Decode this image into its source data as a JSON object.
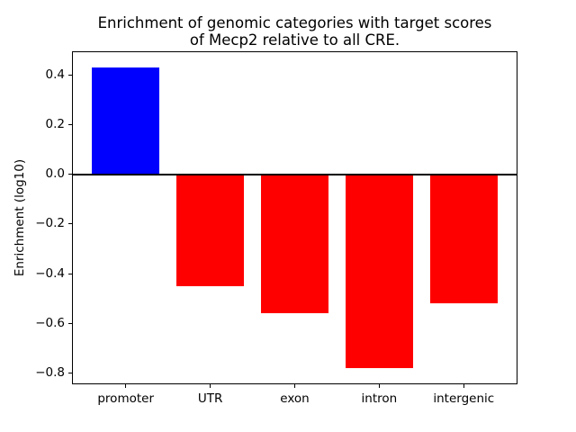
{
  "figure": {
    "background": "#ffffff",
    "axis_color": "#000000"
  },
  "chart_data": {
    "type": "bar",
    "title_line1": "Enrichment of genomic categories with target scores",
    "title_line2": "of Mecp2 relative to all CRE.",
    "ylabel": "Enrichment (log10)",
    "xlabel": "",
    "categories": [
      "promoter",
      "UTR",
      "exon",
      "intron",
      "intergenic"
    ],
    "values": [
      0.43,
      -0.45,
      -0.56,
      -0.78,
      -0.52
    ],
    "bar_colors": [
      "#0000ff",
      "#ff0000",
      "#ff0000",
      "#ff0000",
      "#ff0000"
    ],
    "positive_color": "#0000ff",
    "negative_color": "#ff0000",
    "bar_width": 0.8,
    "yticks": [
      0.4,
      0.2,
      0.0,
      -0.2,
      -0.4,
      -0.6,
      -0.8
    ],
    "yticklabels": [
      "0.4",
      "0.2",
      "0.0",
      "−0.2",
      "−0.4",
      "−0.6",
      "−0.8"
    ],
    "ylim": [
      -0.842,
      0.492
    ],
    "xlim": [
      -0.625,
      4.625
    ],
    "zero_line": true,
    "zero_line_color": "#000000",
    "zero_line_width": 2,
    "grid": false,
    "legend": null
  }
}
